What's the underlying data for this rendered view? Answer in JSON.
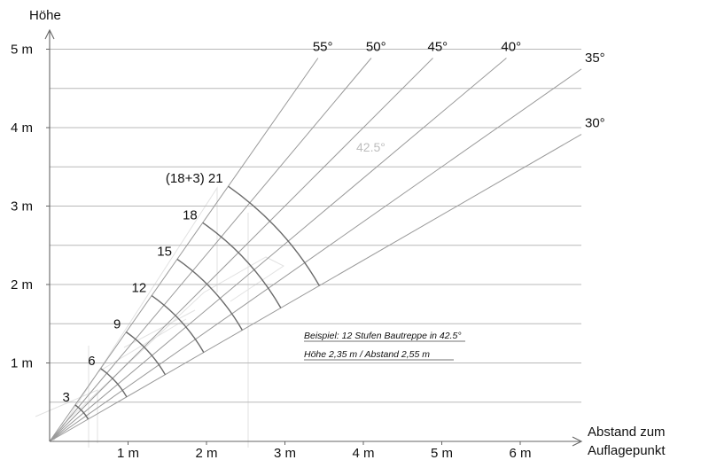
{
  "diagram": {
    "y_axis_label": "Höhe",
    "x_axis_label_line1": "Abstand zum",
    "x_axis_label_line2": "Auflagepunkt",
    "x_ticks": [
      {
        "value": 1,
        "label": "1 m"
      },
      {
        "value": 2,
        "label": "2 m"
      },
      {
        "value": 3,
        "label": "3 m"
      },
      {
        "value": 4,
        "label": "4 m"
      },
      {
        "value": 5,
        "label": "5 m"
      },
      {
        "value": 6,
        "label": "6 m"
      }
    ],
    "y_ticks": [
      {
        "value": 1,
        "label": "1 m"
      },
      {
        "value": 2,
        "label": "2 m"
      },
      {
        "value": 3,
        "label": "3 m"
      },
      {
        "value": 4,
        "label": "4 m"
      },
      {
        "value": 5,
        "label": "5 m"
      }
    ],
    "grid_y_values": [
      0.5,
      1,
      1.5,
      2,
      2.5,
      3,
      3.5,
      4,
      4.5,
      5
    ],
    "angles": [
      {
        "deg": 55,
        "label": "55°"
      },
      {
        "deg": 50,
        "label": "50°"
      },
      {
        "deg": 45,
        "label": "45°"
      },
      {
        "deg": 40,
        "label": "40°"
      },
      {
        "deg": 35,
        "label": "35°"
      },
      {
        "deg": 30,
        "label": "30°"
      }
    ],
    "steps": [
      {
        "steps": 3,
        "label": "3"
      },
      {
        "steps": 6,
        "label": "6"
      },
      {
        "steps": 9,
        "label": "9"
      },
      {
        "steps": 12,
        "label": "12"
      },
      {
        "steps": 15,
        "label": "15"
      },
      {
        "steps": 18,
        "label": "18"
      },
      {
        "steps": 21,
        "label": "(18+3) 21"
      }
    ],
    "arc_label": "42.5°",
    "example_line1": "Beispiel: 12 Stufen Bautreppe in 42.5°",
    "example_line2": "Höhe 2,35 m / Abstand 2,55 m"
  }
}
